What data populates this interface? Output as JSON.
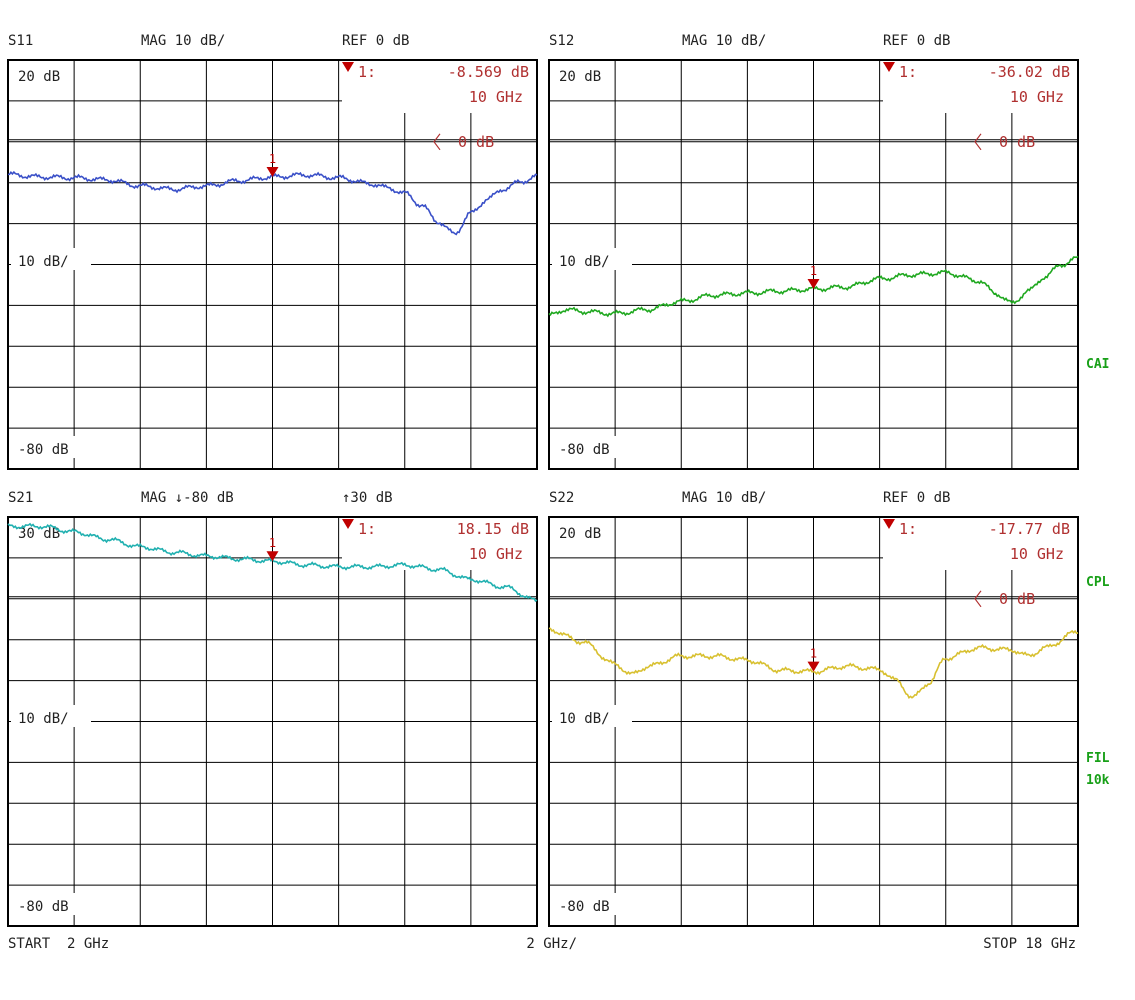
{
  "footer": {
    "start_label": "START  2 GHz",
    "span_label": "2 GHz/",
    "stop_label": "STOP 18 GHz"
  },
  "side_labels": [
    "CAI",
    "CPL",
    "FIL",
    "10k"
  ],
  "colors": {
    "grid": "#000000",
    "marker": "#c00000",
    "marker_text": "#b03030",
    "side_text": "#18a018"
  },
  "chart_data": [
    {
      "type": "line",
      "id": "s11",
      "header": {
        "param": "S11",
        "format": "MAG 10 dB/",
        "ref": "REF 0 dB"
      },
      "scale_labels": [
        "20 dB",
        "10 dB/",
        "-80 dB"
      ],
      "ref_marker_label": "0 dB",
      "marker": {
        "label": "1",
        "readout_prefix": "1:",
        "value": "-8.569 dB",
        "freq": "10 GHz",
        "x": 10
      },
      "color": "#3a50c8",
      "xlim": [
        2,
        18
      ],
      "ylim": [
        -80,
        20
      ],
      "x": [
        2,
        3,
        4,
        5,
        6,
        7,
        8,
        9,
        10,
        11,
        12,
        13,
        13.5,
        14,
        14.5,
        15,
        15.5,
        16,
        16.5,
        17,
        17.5,
        18
      ],
      "y": [
        -8,
        -8.6,
        -8.8,
        -9.3,
        -10.8,
        -11.6,
        -10.8,
        -9.5,
        -8.6,
        -8.1,
        -8.8,
        -10.3,
        -11.3,
        -12.6,
        -15.5,
        -19.5,
        -22.5,
        -17.5,
        -14,
        -11.5,
        -9.8,
        -8.5
      ]
    },
    {
      "type": "line",
      "id": "s12",
      "header": {
        "param": "S12",
        "format": "MAG 10 dB/",
        "ref": "REF 0 dB"
      },
      "scale_labels": [
        "20 dB",
        "10 dB/",
        "-80 dB"
      ],
      "ref_marker_label": "0 dB",
      "marker": {
        "label": "1",
        "readout_prefix": "1:",
        "value": "-36.02 dB",
        "freq": "10 GHz",
        "x": 10
      },
      "color": "#20a820",
      "xlim": [
        2,
        18
      ],
      "ylim": [
        -80,
        20
      ],
      "x": [
        2,
        2.5,
        3,
        4,
        5,
        6,
        7,
        8,
        9,
        10,
        11,
        12,
        13,
        14,
        15,
        15.5,
        16,
        16.5,
        17,
        17.5,
        18
      ],
      "y": [
        -42.5,
        -41,
        -41.5,
        -42,
        -41,
        -39,
        -37.5,
        -37,
        -36.5,
        -36,
        -35.5,
        -33.5,
        -32.5,
        -32,
        -34,
        -37,
        -39.5,
        -36.5,
        -33,
        -30,
        -28.5
      ]
    },
    {
      "type": "line",
      "id": "s21",
      "header": {
        "param": "S21",
        "format": "MAG ↓-80 dB",
        "ref": "↑30 dB"
      },
      "scale_labels": [
        "30 dB",
        "10 dB/",
        "-80 dB"
      ],
      "ref_marker_label": "",
      "marker": {
        "label": "1",
        "readout_prefix": "1:",
        "value": "18.15 dB",
        "freq": "10 GHz",
        "x": 10
      },
      "color": "#20b0b0",
      "xlim": [
        2,
        18
      ],
      "ylim": [
        -80,
        30
      ],
      "x": [
        2,
        3,
        4,
        5,
        6,
        7,
        8,
        9,
        10,
        11,
        12,
        13,
        14,
        15,
        16,
        17,
        18
      ],
      "y": [
        27.5,
        27.5,
        26,
        24,
        22,
        20.5,
        19.5,
        18.7,
        18.1,
        17.1,
        16.6,
        16.6,
        17.1,
        15.9,
        13.2,
        11.2,
        7.5
      ]
    },
    {
      "type": "line",
      "id": "s22",
      "header": {
        "param": "S22",
        "format": "MAG 10 dB/",
        "ref": "REF 0 dB"
      },
      "scale_labels": [
        "20 dB",
        "10 dB/",
        "-80 dB"
      ],
      "ref_marker_label": "0 dB",
      "marker": {
        "label": "1",
        "readout_prefix": "1:",
        "value": "-17.77 dB",
        "freq": "10 GHz",
        "x": 10
      },
      "color": "#d8c030",
      "xlim": [
        2,
        18
      ],
      "ylim": [
        -80,
        20
      ],
      "x": [
        2,
        3,
        4,
        4.5,
        5,
        6,
        7,
        8,
        9,
        10,
        11,
        12,
        12.5,
        13,
        13.5,
        14,
        15,
        16,
        16.5,
        17,
        18
      ],
      "y": [
        -7.5,
        -10.5,
        -16,
        -18.5,
        -16.5,
        -14,
        -14,
        -15,
        -17.5,
        -17.8,
        -16.5,
        -17.3,
        -20,
        -24.2,
        -20.5,
        -14.5,
        -12,
        -12.5,
        -14,
        -12,
        -8
      ]
    }
  ]
}
